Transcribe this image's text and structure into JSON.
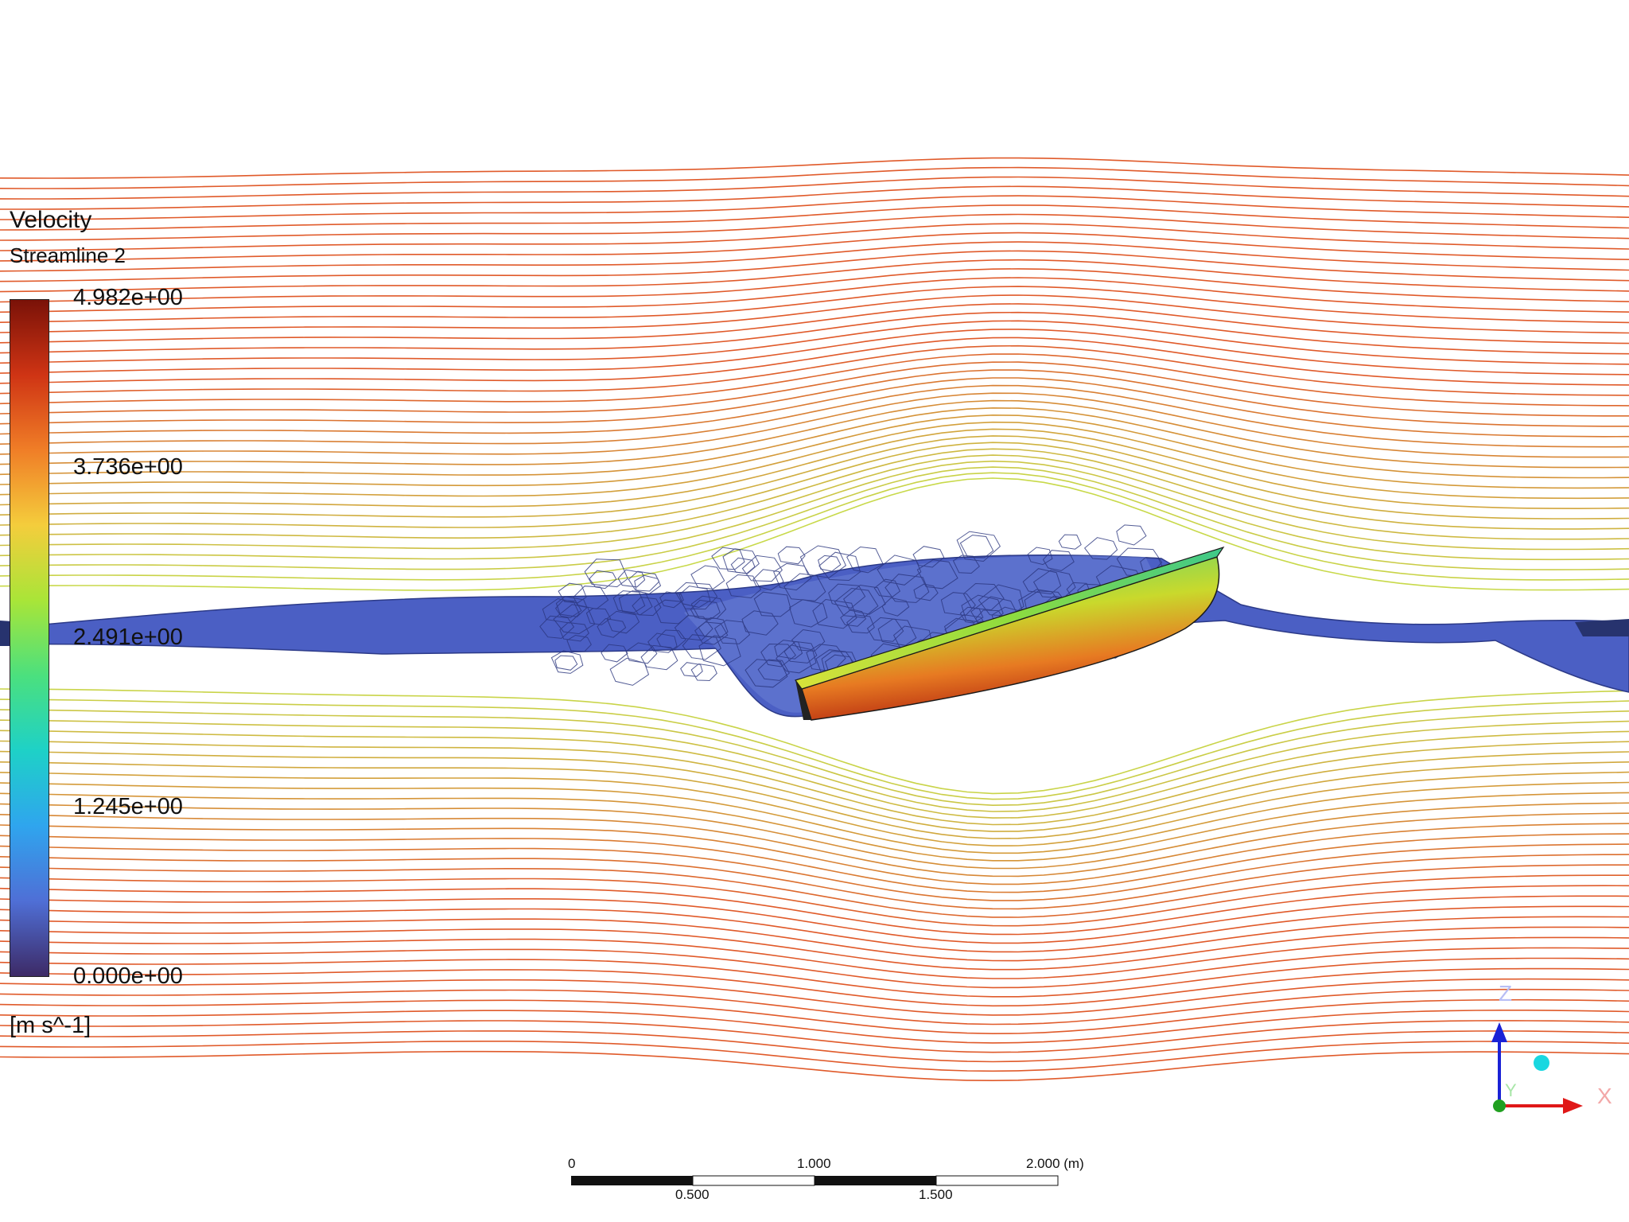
{
  "legend": {
    "title": "Velocity",
    "subtitle": "Streamline 2",
    "units": "[m s^-1]",
    "ticks": [
      "4.982e+00",
      "3.736e+00",
      "2.491e+00",
      "1.245e+00",
      "0.000e+00"
    ],
    "colormap": [
      "#3d2a66",
      "#4f6fd6",
      "#2fa5ee",
      "#1ed1c7",
      "#4be07e",
      "#a9e538",
      "#f4cd3c",
      "#f07e27",
      "#cf3414",
      "#7a1208"
    ]
  },
  "scale_bar": {
    "top_labels": [
      "0",
      "1.000",
      "2.000  (m)"
    ],
    "bottom_labels": [
      "0.500",
      "1.500"
    ]
  },
  "triad": {
    "z_label": "Z",
    "x_label": "X",
    "y_label": "Y"
  },
  "colors": {
    "free_surface": "#4b5fc4",
    "streamline_fast": "#e05a2a",
    "streamline_slow": "#c8d94a"
  }
}
